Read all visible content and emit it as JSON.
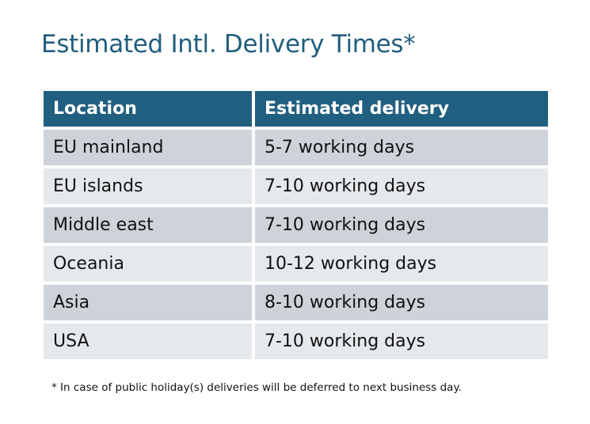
{
  "title": "Estimated Intl. Delivery Times*",
  "table": {
    "headers": [
      "Location",
      "Estimated delivery"
    ],
    "rows": [
      [
        "EU mainland",
        "5-7 working days"
      ],
      [
        "EU islands",
        "7-10 working days"
      ],
      [
        "Middle east",
        "7-10 working days"
      ],
      [
        "Oceania",
        "10-12 working days"
      ],
      [
        "Asia",
        "8-10 working days"
      ],
      [
        "USA",
        "7-10 working days"
      ]
    ]
  },
  "footnote": "* In case of public holiday(s) deliveries will be deferred to next business day.",
  "colors": {
    "title": "#215e7e",
    "header": "#215f80",
    "row_odd": "#ced3da",
    "row_even": "#e6e9ec"
  }
}
